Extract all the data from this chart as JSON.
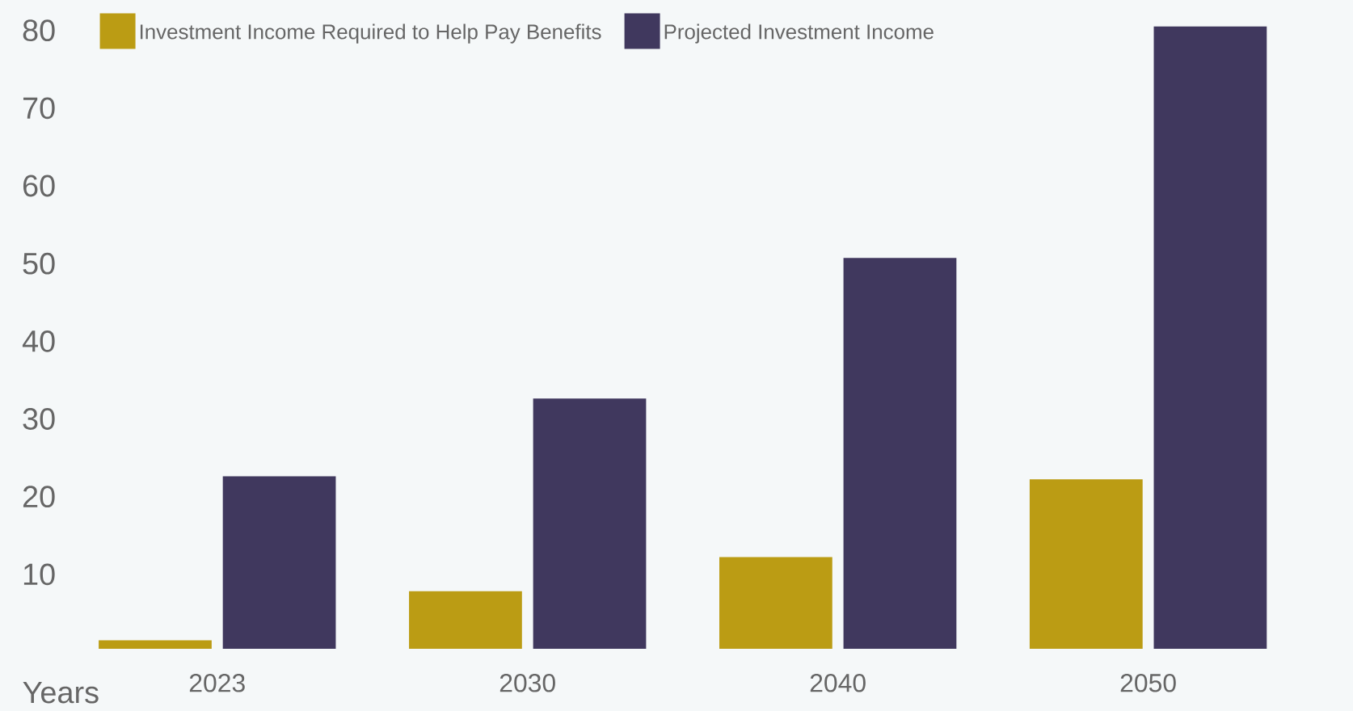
{
  "chart_data": {
    "type": "bar",
    "xlabel": "Years",
    "categories": [
      "2023",
      "2030",
      "2040",
      "2050"
    ],
    "series": [
      {
        "name": "Investment Income Required to Help Pay Benefits",
        "color": "#bb9c14",
        "values": [
          1.1,
          7.4,
          11.8,
          21.8
        ]
      },
      {
        "name": "Projected Investment Income",
        "color": "#40385e",
        "values": [
          22.2,
          32.2,
          50.3,
          80.1
        ]
      }
    ],
    "ylim": [
      0,
      83.5
    ],
    "yticks": [
      10,
      20,
      30,
      40,
      50,
      60,
      70,
      80
    ],
    "grid": false,
    "legend": "top left"
  }
}
